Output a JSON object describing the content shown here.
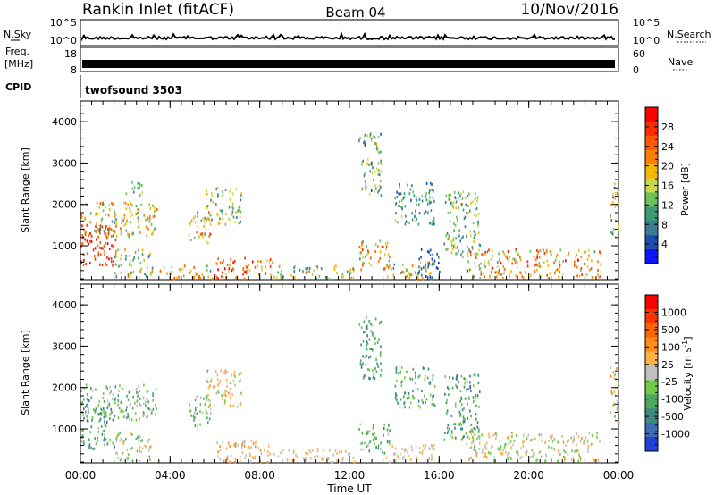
{
  "header": {
    "station": "Rankin Inlet (fitACF)",
    "beam": "Beam 04",
    "date": "10/Nov/2016"
  },
  "top_panels": {
    "nsky_label": "N.Sky",
    "nsky_ticks": [
      "10^5",
      "10^0"
    ],
    "nsearch_label": "N.Search",
    "nsearch_ticks": [
      "10^5",
      "10^0"
    ],
    "freq_label_1": "Freq.",
    "freq_label_2": "[MHz]",
    "freq_ticks": [
      "18",
      "8"
    ],
    "nave_label": "Nave",
    "nave_ticks": [
      "60",
      "0"
    ],
    "cpid_label": "CPID",
    "cpid_value": "twofsound 3503"
  },
  "colors": {
    "power_scale": [
      "#0a14ff",
      "#1b4fb0",
      "#3a7d94",
      "#3d9b73",
      "#6cc25a",
      "#c8d84a",
      "#f5b800",
      "#ff8000",
      "#ff5a00",
      "#ff2a00",
      "#ff0000"
    ],
    "velocity_scale": [
      "#2042d8",
      "#3f6bb0",
      "#3b8c80",
      "#4ea85d",
      "#72c94a",
      "#c0c0c0",
      "#ffb347",
      "#ff8c1a",
      "#ff6600",
      "#ff3300",
      "#ff0000"
    ]
  },
  "chart_data": [
    {
      "type": "heatmap",
      "name": "power",
      "xlabel": "Time UT",
      "ylabel": "Slant Range [km]",
      "x_ticks": [
        "00:00",
        "04:00",
        "08:00",
        "12:00",
        "16:00",
        "20:00",
        "00:00"
      ],
      "y_ticks": [
        "1000",
        "2000",
        "3000",
        "4000"
      ],
      "ylim": [
        180,
        4500
      ],
      "colorbar_label": "Power [dB]",
      "colorbar_ticks": [
        "28",
        "24",
        "20",
        "16",
        "12",
        "8",
        "4"
      ],
      "colorbar_range": [
        0,
        30
      ],
      "blobs": [
        {
          "t0": 0.0,
          "t1": 1.6,
          "r0": 500,
          "r1": 1500,
          "v0": 22,
          "v1": 30
        },
        {
          "t0": 0.0,
          "t1": 3.4,
          "r0": 1200,
          "r1": 2050,
          "v0": 8,
          "v1": 24
        },
        {
          "t0": 1.5,
          "t1": 3.2,
          "r0": 200,
          "r1": 900,
          "v0": 6,
          "v1": 22
        },
        {
          "t0": 2.0,
          "t1": 2.8,
          "r0": 2200,
          "r1": 2550,
          "v0": 6,
          "v1": 14
        },
        {
          "t0": 4.8,
          "t1": 5.8,
          "r0": 1000,
          "r1": 1800,
          "v0": 10,
          "v1": 26
        },
        {
          "t0": 5.6,
          "t1": 7.2,
          "r0": 1500,
          "r1": 2400,
          "v0": 6,
          "v1": 18
        },
        {
          "t0": 6.0,
          "t1": 8.6,
          "r0": 180,
          "r1": 700,
          "v0": 14,
          "v1": 30
        },
        {
          "t0": 3.5,
          "t1": 6.0,
          "r0": 180,
          "r1": 500,
          "v0": 10,
          "v1": 26
        },
        {
          "t0": 8.6,
          "t1": 12.2,
          "r0": 180,
          "r1": 500,
          "v0": 6,
          "v1": 22
        },
        {
          "t0": 12.4,
          "t1": 13.8,
          "r0": 400,
          "r1": 1100,
          "v0": 10,
          "v1": 26
        },
        {
          "t0": 12.4,
          "t1": 13.4,
          "r0": 2200,
          "r1": 3700,
          "v0": 4,
          "v1": 18
        },
        {
          "t0": 13.5,
          "t1": 15.8,
          "r0": 180,
          "r1": 600,
          "v0": 6,
          "v1": 22
        },
        {
          "t0": 14.0,
          "t1": 15.8,
          "r0": 1500,
          "r1": 2500,
          "v0": 4,
          "v1": 14
        },
        {
          "t0": 15.0,
          "t1": 16.0,
          "r0": 180,
          "r1": 900,
          "v0": 2,
          "v1": 8
        },
        {
          "t0": 16.2,
          "t1": 17.8,
          "r0": 700,
          "r1": 2300,
          "v0": 6,
          "v1": 18
        },
        {
          "t0": 17.2,
          "t1": 23.2,
          "r0": 200,
          "r1": 900,
          "v0": 10,
          "v1": 28
        },
        {
          "t0": 23.6,
          "t1": 24.0,
          "r0": 1100,
          "r1": 2500,
          "v0": 4,
          "v1": 20
        }
      ]
    },
    {
      "type": "heatmap",
      "name": "velocity",
      "xlabel": "Time UT",
      "ylabel": "Slant Range [km]",
      "x_ticks": [
        "00:00",
        "04:00",
        "08:00",
        "12:00",
        "16:00",
        "20:00",
        "00:00"
      ],
      "y_ticks": [
        "1000",
        "2000",
        "3000",
        "4000"
      ],
      "ylim": [
        180,
        4500
      ],
      "colorbar_label": "Velocity [m s-1]",
      "colorbar_ticks": [
        "1000",
        "500",
        "100",
        "25",
        "-25",
        "-100",
        "-500",
        "-1000"
      ],
      "colorbar_range": [
        -1200,
        1200
      ],
      "blobs": [
        {
          "t0": 0.0,
          "t1": 1.6,
          "r0": 500,
          "r1": 1500,
          "v0": -900,
          "v1": -100
        },
        {
          "t0": 0.0,
          "t1": 3.4,
          "r0": 1200,
          "r1": 2050,
          "v0": -600,
          "v1": 50
        },
        {
          "t0": 1.5,
          "t1": 3.2,
          "r0": 200,
          "r1": 900,
          "v0": -400,
          "v1": 200
        },
        {
          "t0": 4.8,
          "t1": 5.8,
          "r0": 1000,
          "r1": 1800,
          "v0": -500,
          "v1": 100
        },
        {
          "t0": 5.6,
          "t1": 7.2,
          "r0": 1500,
          "r1": 2400,
          "v0": -200,
          "v1": 400
        },
        {
          "t0": 6.0,
          "t1": 8.6,
          "r0": 180,
          "r1": 700,
          "v0": -100,
          "v1": 500
        },
        {
          "t0": 8.6,
          "t1": 12.2,
          "r0": 180,
          "r1": 500,
          "v0": -50,
          "v1": 300
        },
        {
          "t0": 12.4,
          "t1": 13.8,
          "r0": 400,
          "r1": 1100,
          "v0": -600,
          "v1": 50
        },
        {
          "t0": 12.4,
          "t1": 13.4,
          "r0": 2200,
          "r1": 3700,
          "v0": -800,
          "v1": -200
        },
        {
          "t0": 13.5,
          "t1": 15.8,
          "r0": 180,
          "r1": 600,
          "v0": -100,
          "v1": 300
        },
        {
          "t0": 14.0,
          "t1": 15.8,
          "r0": 1500,
          "r1": 2500,
          "v0": -700,
          "v1": -100
        },
        {
          "t0": 16.2,
          "t1": 17.8,
          "r0": 700,
          "r1": 2300,
          "v0": -900,
          "v1": -100
        },
        {
          "t0": 17.2,
          "t1": 23.2,
          "r0": 200,
          "r1": 900,
          "v0": -300,
          "v1": 400
        },
        {
          "t0": 23.6,
          "t1": 24.0,
          "r0": 1100,
          "r1": 2500,
          "v0": -300,
          "v1": 500
        }
      ]
    }
  ]
}
